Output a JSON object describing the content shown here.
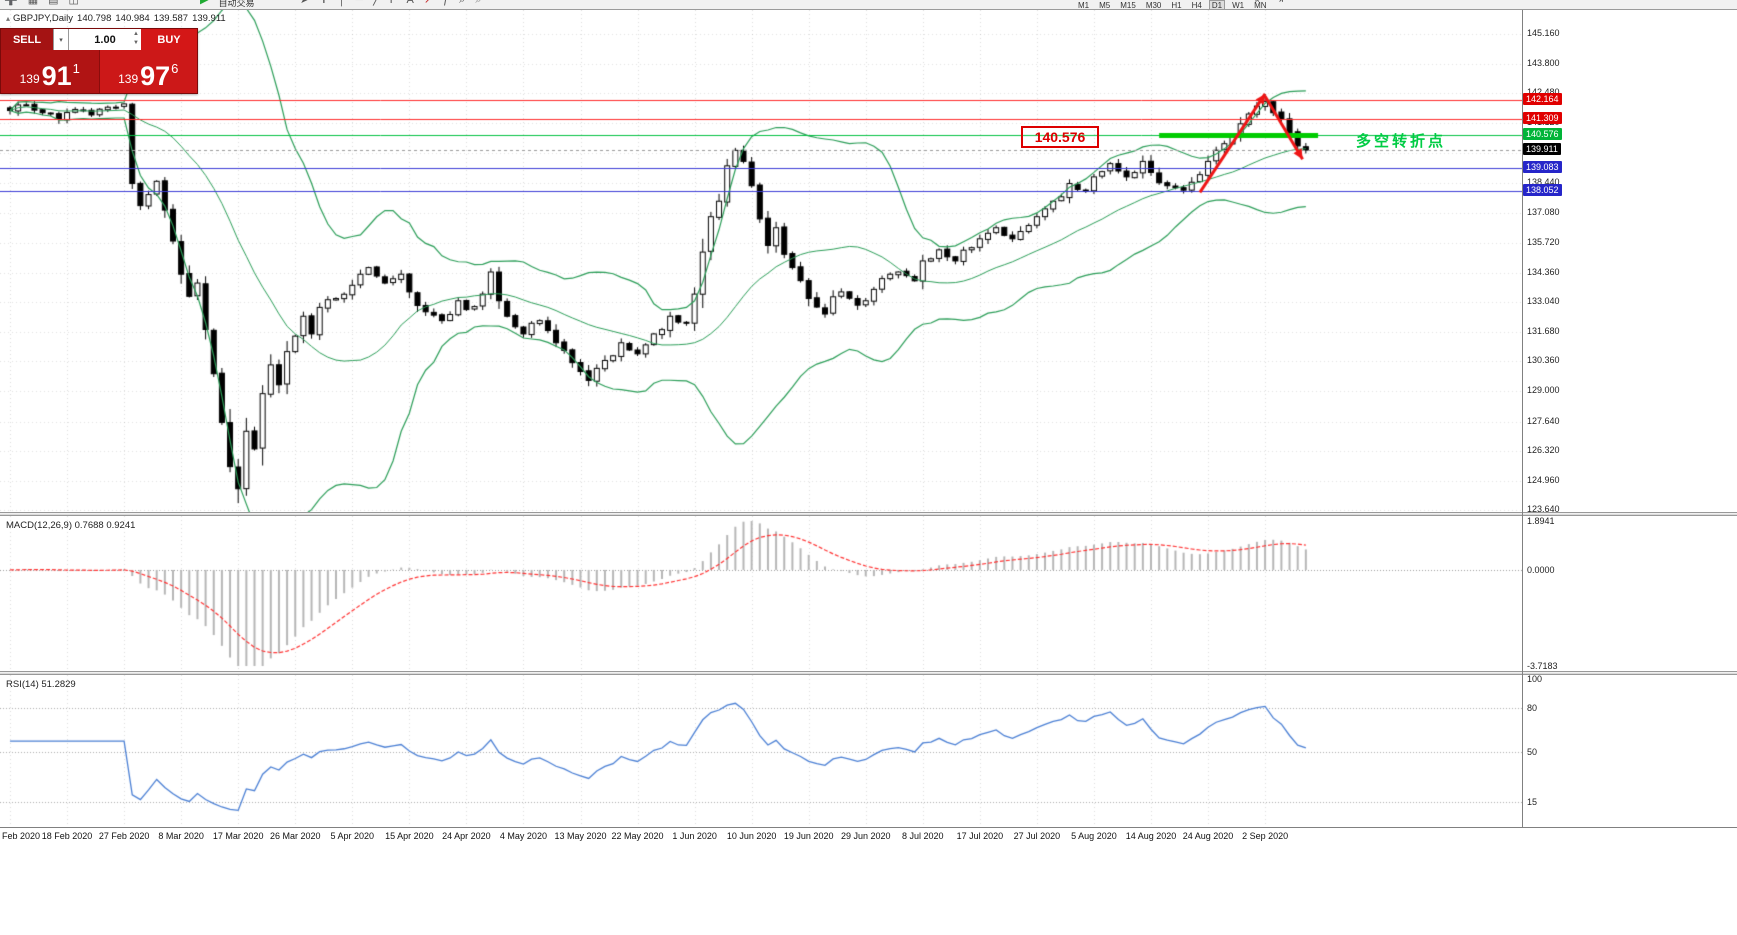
{
  "toolbar": {
    "left_icons": [
      {
        "name": "new-order-icon",
        "glyph": "➕",
        "color": "#2e7d32"
      },
      {
        "name": "charts-icon",
        "glyph": "▦",
        "color": "#555555"
      },
      {
        "name": "profiles-icon",
        "glyph": "▤",
        "color": "#555555"
      },
      {
        "name": "market-watch-icon",
        "glyph": "◫",
        "color": "#555555"
      }
    ],
    "autotrade": {
      "label": "自动交易",
      "play_glyph": "▶",
      "icon_color": "#1faa32"
    },
    "mid_icons": [
      {
        "name": "cursor-icon",
        "glyph": "➤",
        "color": "#555555"
      },
      {
        "name": "crosshair-icon",
        "glyph": "✛",
        "color": "#555555"
      },
      {
        "name": "vertical-line-icon",
        "glyph": "│",
        "color": "#555555"
      },
      {
        "name": "horizontal-line-icon",
        "glyph": "─",
        "color": "#555555"
      },
      {
        "name": "trendline-icon",
        "glyph": "╱",
        "color": "#555555"
      },
      {
        "name": "fibonacci-icon",
        "glyph": "F",
        "color": "#555555"
      },
      {
        "name": "text-label-icon",
        "glyph": "A",
        "color": "#555555"
      },
      {
        "name": "arrow-object-icon",
        "glyph": "↗",
        "color": "#c62828"
      },
      {
        "name": "indicators-icon",
        "glyph": "ƒ",
        "color": "#555555"
      },
      {
        "name": "zoom-in-icon",
        "glyph": "⌕",
        "color": "#555555"
      },
      {
        "name": "zoom-out-icon",
        "glyph": "⌕",
        "color": "#888888"
      }
    ],
    "timeframes": [
      "M1",
      "M5",
      "M15",
      "M30",
      "H1",
      "H4",
      "D1",
      "W1",
      "MN"
    ],
    "active_timeframe": "D1",
    "right_icons": [
      {
        "name": "auto-scroll-icon",
        "glyph": "⇤",
        "color": "#555555"
      },
      {
        "name": "chart-shift-icon",
        "glyph": "⇥",
        "color": "#555555"
      }
    ]
  },
  "trade_panel": {
    "sell_label": "SELL",
    "buy_label": "BUY",
    "volume": "1.00",
    "sell_price": {
      "small": "139",
      "big": "91",
      "sup": "1"
    },
    "buy_price": {
      "small": "139",
      "big": "97",
      "sup": "6"
    }
  },
  "chart_header": {
    "collapse_glyph": "▴",
    "symbol": "GBPJPY,Daily",
    "open": "140.798",
    "high": "140.984",
    "low": "139.587",
    "close": "139.911"
  },
  "annotations": {
    "price_box": "140.576",
    "turning_point": "多空转折点"
  },
  "price_axis": {
    "ticks": [
      "145.160",
      "143.800",
      "142.480",
      "141.120",
      "139.760",
      "138.440",
      "137.080",
      "135.720",
      "134.360",
      "133.040",
      "131.680",
      "130.360",
      "129.000",
      "127.640",
      "126.320",
      "124.960",
      "123.640"
    ]
  },
  "levels": [
    {
      "price": 142.164,
      "label": "142.164",
      "line_color": "#ff2a2a",
      "tag_bg": "#e00000"
    },
    {
      "price": 141.309,
      "label": "141.309",
      "line_color": "#ff2a2a",
      "tag_bg": "#e00000"
    },
    {
      "price": 140.576,
      "label": "140.576",
      "line_color": "#00c040",
      "tag_bg": "#00b438"
    },
    {
      "price": 139.083,
      "label": "139.083",
      "line_color": "#3b3bd6",
      "tag_bg": "#2626c9"
    },
    {
      "price": 138.052,
      "label": "138.052",
      "line_color": "#3b3bd6",
      "tag_bg": "#2626c9"
    }
  ],
  "current_price": {
    "value": 139.911,
    "label": "139.911",
    "tag_bg": "#000000",
    "line_color": "#9a9a9a"
  },
  "macd_panel": {
    "label": "MACD(12,26,9) 0.7688 0.9241",
    "fast": 12,
    "slow": 26,
    "signal": 9,
    "axis_labels": [
      "1.8941",
      "0.0000",
      "-3.7183"
    ],
    "max": 1.8941,
    "min": -3.7183,
    "hist_color": "#b6b6b6",
    "signal_color": "#ff3333"
  },
  "rsi_panel": {
    "label": "RSI(14) 51.2829",
    "period": 14,
    "axis_labels": [
      "100",
      "80",
      "50",
      "15"
    ],
    "levels": [
      80,
      50,
      15
    ],
    "line_color": "#4a7fd4"
  },
  "date_axis": {
    "bars_per_label": 7,
    "labels": [
      "Feb 2020",
      "18 Feb 2020",
      "27 Feb 2020",
      "8 Mar 2020",
      "17 Mar 2020",
      "26 Mar 2020",
      "5 Apr 2020",
      "15 Apr 2020",
      "24 Apr 2020",
      "4 May 2020",
      "13 May 2020",
      "22 May 2020",
      "1 Jun 2020",
      "10 Jun 2020",
      "19 Jun 2020",
      "29 Jun 2020",
      "8 Jul 2020",
      "17 Jul 2020",
      "27 Jul 2020",
      "5 Aug 2020",
      "14 Aug 2020",
      "24 Aug 2020",
      "2 Sep 2020"
    ]
  },
  "chart_data": {
    "type": "candlestick",
    "symbol": "GBPJPY",
    "timeframe": "Daily",
    "ohlc_display": {
      "open": 140.798,
      "high": 140.984,
      "low": 139.587,
      "close": 139.911
    },
    "bar_count": 160,
    "close_anchors": [
      [
        0,
        141.7
      ],
      [
        2,
        141.95
      ],
      [
        4,
        141.6
      ],
      [
        6,
        141.3
      ],
      [
        8,
        141.75
      ],
      [
        10,
        141.5
      ],
      [
        12,
        141.85
      ],
      [
        14,
        142.0
      ],
      [
        15,
        138.4
      ],
      [
        16,
        137.4
      ],
      [
        17,
        137.9
      ],
      [
        18,
        138.5
      ],
      [
        19,
        137.2
      ],
      [
        20,
        135.8
      ],
      [
        21,
        134.3
      ],
      [
        22,
        133.3
      ],
      [
        23,
        133.9
      ],
      [
        24,
        131.8
      ],
      [
        25,
        129.8
      ],
      [
        26,
        127.6
      ],
      [
        27,
        125.6
      ],
      [
        28,
        124.6
      ],
      [
        29,
        127.2
      ],
      [
        30,
        126.4
      ],
      [
        31,
        128.9
      ],
      [
        32,
        130.2
      ],
      [
        33,
        129.3
      ],
      [
        34,
        130.8
      ],
      [
        35,
        131.5
      ],
      [
        36,
        132.4
      ],
      [
        37,
        131.6
      ],
      [
        38,
        132.8
      ],
      [
        40,
        133.2
      ],
      [
        42,
        133.8
      ],
      [
        44,
        134.6
      ],
      [
        46,
        133.9
      ],
      [
        48,
        134.3
      ],
      [
        49,
        133.5
      ],
      [
        51,
        132.6
      ],
      [
        53,
        132.2
      ],
      [
        55,
        133.1
      ],
      [
        56,
        132.7
      ],
      [
        58,
        133.4
      ],
      [
        59,
        134.4
      ],
      [
        60,
        133.1
      ],
      [
        61,
        132.4
      ],
      [
        63,
        131.6
      ],
      [
        65,
        132.2
      ],
      [
        67,
        131.2
      ],
      [
        69,
        130.3
      ],
      [
        70,
        129.9
      ],
      [
        71,
        129.5
      ],
      [
        73,
        130.4
      ],
      [
        75,
        131.2
      ],
      [
        77,
        130.7
      ],
      [
        79,
        131.6
      ],
      [
        81,
        132.4
      ],
      [
        83,
        132.1
      ],
      [
        84,
        133.4
      ],
      [
        85,
        135.3
      ],
      [
        86,
        136.9
      ],
      [
        87,
        137.6
      ],
      [
        88,
        139.2
      ],
      [
        89,
        139.9
      ],
      [
        90,
        139.4
      ],
      [
        91,
        138.3
      ],
      [
        92,
        136.8
      ],
      [
        93,
        135.6
      ],
      [
        94,
        136.4
      ],
      [
        95,
        135.2
      ],
      [
        96,
        134.6
      ],
      [
        98,
        133.2
      ],
      [
        100,
        132.5
      ],
      [
        102,
        133.5
      ],
      [
        104,
        132.9
      ],
      [
        105,
        133.1
      ],
      [
        107,
        134.1
      ],
      [
        109,
        134.4
      ],
      [
        111,
        134.0
      ],
      [
        112,
        134.9
      ],
      [
        114,
        135.4
      ],
      [
        116,
        134.9
      ],
      [
        118,
        135.5
      ],
      [
        119,
        135.9
      ],
      [
        121,
        136.4
      ],
      [
        123,
        135.9
      ],
      [
        125,
        136.5
      ],
      [
        126,
        136.9
      ],
      [
        128,
        137.6
      ],
      [
        130,
        138.4
      ],
      [
        132,
        138.1
      ],
      [
        133,
        138.7
      ],
      [
        135,
        139.3
      ],
      [
        137,
        138.7
      ],
      [
        139,
        139.4
      ],
      [
        140,
        138.9
      ],
      [
        142,
        138.3
      ],
      [
        144,
        138.1
      ],
      [
        146,
        138.8
      ],
      [
        147,
        139.4
      ],
      [
        149,
        140.2
      ],
      [
        151,
        141.1
      ],
      [
        153,
        141.9
      ],
      [
        154,
        142.1
      ],
      [
        155,
        141.6
      ],
      [
        156,
        141.3
      ],
      [
        157,
        140.7
      ],
      [
        158,
        140.1
      ],
      [
        159,
        139.911
      ]
    ],
    "extremes": [
      {
        "bar": 28,
        "low": 123.95
      },
      {
        "bar": 154,
        "high": 142.45
      },
      {
        "bar": 15,
        "high": 142.05
      }
    ],
    "price_range_top": 145.16,
    "price_range_bottom": 123.64,
    "bollinger": {
      "period": 20,
      "deviation": 2,
      "color": "#2a9d57"
    },
    "candle_up_fill": "#ffffff",
    "candle_down_fill": "#000000",
    "candle_outline": "#000000",
    "support_segment": {
      "price": 140.576,
      "from_bar": 141,
      "to_bar": 160.5,
      "color": "#00cc00",
      "width": 5
    },
    "trend_arrows": [
      {
        "from_bar": 146,
        "from_price": 138.0,
        "to_bar": 154,
        "to_price": 142.45,
        "color": "#ee1515",
        "width": 3
      },
      {
        "from_bar": 154,
        "from_price": 142.35,
        "to_bar": 158.6,
        "to_price": 139.5,
        "color": "#ee1515",
        "width": 3
      }
    ]
  }
}
